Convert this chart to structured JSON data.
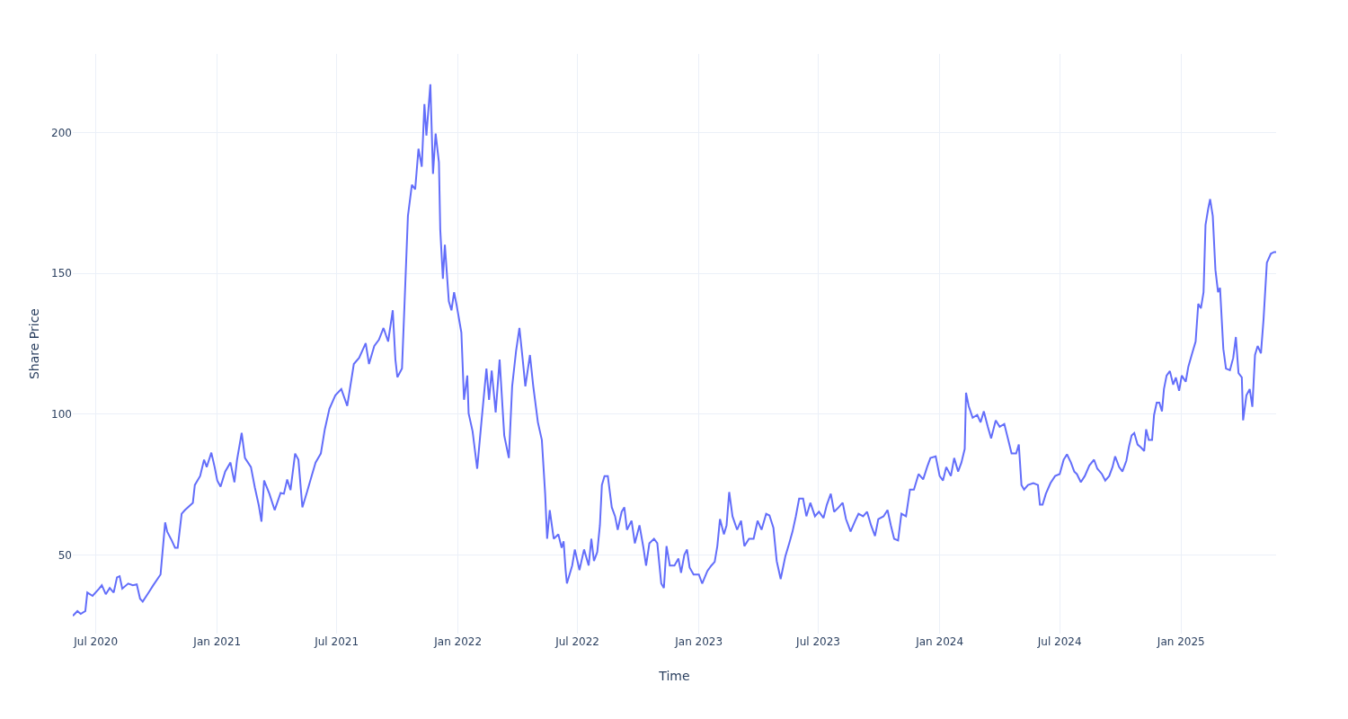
{
  "chart_data": {
    "type": "line",
    "xlabel": "Time",
    "ylabel": "Share Price",
    "grid": true,
    "xlim": [
      "2020-05-27",
      "2025-05-25"
    ],
    "xticks": [
      {
        "value": "2020-07-01",
        "label": "Jul 2020"
      },
      {
        "value": "2021-01-01",
        "label": "Jan 2021"
      },
      {
        "value": "2021-07-01",
        "label": "Jul 2021"
      },
      {
        "value": "2022-01-01",
        "label": "Jan 2022"
      },
      {
        "value": "2022-07-01",
        "label": "Jul 2022"
      },
      {
        "value": "2023-01-01",
        "label": "Jan 2023"
      },
      {
        "value": "2023-07-01",
        "label": "Jul 2023"
      },
      {
        "value": "2024-01-01",
        "label": "Jan 2024"
      },
      {
        "value": "2024-07-01",
        "label": "Jul 2024"
      },
      {
        "value": "2025-01-01",
        "label": "Jan 2025"
      }
    ],
    "ylim": [
      22,
      228
    ],
    "yticks": [
      50,
      100,
      150,
      200
    ],
    "series": [
      {
        "color": "#636efa",
        "x": [
          "2020-05-27",
          "2020-06-03",
          "2020-06-08",
          "2020-06-15",
          "2020-06-18",
          "2020-06-26",
          "2020-07-06",
          "2020-07-10",
          "2020-07-16",
          "2020-07-22",
          "2020-07-28",
          "2020-08-02",
          "2020-08-06",
          "2020-08-10",
          "2020-08-19",
          "2020-08-26",
          "2020-09-01",
          "2020-09-06",
          "2020-09-10",
          "2020-09-19",
          "2020-09-26",
          "2020-10-07",
          "2020-10-14",
          "2020-10-17",
          "2020-10-24",
          "2020-10-29",
          "2020-11-02",
          "2020-11-08",
          "2020-11-13",
          "2020-11-25",
          "2020-11-28",
          "2020-12-06",
          "2020-12-12",
          "2020-12-16",
          "2020-12-23",
          "2020-12-28",
          "2021-01-01",
          "2021-01-06",
          "2021-01-13",
          "2021-01-21",
          "2021-01-27",
          "2021-01-31",
          "2021-02-07",
          "2021-02-12",
          "2021-02-21",
          "2021-02-27",
          "2021-03-05",
          "2021-03-09",
          "2021-03-13",
          "2021-03-21",
          "2021-03-29",
          "2021-04-07",
          "2021-04-12",
          "2021-04-17",
          "2021-04-22",
          "2021-04-29",
          "2021-05-04",
          "2021-05-10",
          "2021-05-17",
          "2021-05-24",
          "2021-05-30",
          "2021-06-07",
          "2021-06-13",
          "2021-06-20",
          "2021-06-29",
          "2021-07-08",
          "2021-07-17",
          "2021-07-27",
          "2021-08-04",
          "2021-08-14",
          "2021-08-19",
          "2021-08-27",
          "2021-09-03",
          "2021-09-10",
          "2021-09-17",
          "2021-09-24",
          "2021-09-28",
          "2021-10-01",
          "2021-10-08",
          "2021-10-12",
          "2021-10-17",
          "2021-10-23",
          "2021-10-28",
          "2021-11-02",
          "2021-11-07",
          "2021-11-11",
          "2021-11-14",
          "2021-11-20",
          "2021-11-24",
          "2021-11-28",
          "2021-12-03",
          "2021-12-05",
          "2021-12-09",
          "2021-12-12",
          "2021-12-18",
          "2021-12-22",
          "2021-12-26",
          "2021-12-30",
          "2022-01-06",
          "2022-01-10",
          "2022-01-15",
          "2022-01-17",
          "2022-01-23",
          "2022-01-30",
          "2022-02-06",
          "2022-02-13",
          "2022-02-17",
          "2022-02-21",
          "2022-02-27",
          "2022-03-05",
          "2022-03-12",
          "2022-03-19",
          "2022-03-24",
          "2022-03-30",
          "2022-04-04",
          "2022-04-09",
          "2022-04-13",
          "2022-04-20",
          "2022-04-25",
          "2022-05-02",
          "2022-05-08",
          "2022-05-13",
          "2022-05-16",
          "2022-05-20",
          "2022-05-26",
          "2022-06-02",
          "2022-06-07",
          "2022-06-10",
          "2022-06-13",
          "2022-06-15",
          "2022-06-23",
          "2022-06-27",
          "2022-07-04",
          "2022-07-11",
          "2022-07-18",
          "2022-07-22",
          "2022-07-26",
          "2022-07-31",
          "2022-08-04",
          "2022-08-07",
          "2022-08-11",
          "2022-08-16",
          "2022-08-22",
          "2022-08-27",
          "2022-08-31",
          "2022-09-06",
          "2022-09-10",
          "2022-09-14",
          "2022-09-21",
          "2022-09-26",
          "2022-10-03",
          "2022-10-09",
          "2022-10-13",
          "2022-10-18",
          "2022-10-25",
          "2022-10-30",
          "2022-11-05",
          "2022-11-09",
          "2022-11-13",
          "2022-11-18",
          "2022-11-25",
          "2022-12-01",
          "2022-12-05",
          "2022-12-10",
          "2022-12-14",
          "2022-12-18",
          "2022-12-24",
          "2023-01-01",
          "2023-01-06",
          "2023-01-14",
          "2023-01-20",
          "2023-01-25",
          "2023-01-29",
          "2023-02-02",
          "2023-02-08",
          "2023-02-12",
          "2023-02-16",
          "2023-02-21",
          "2023-02-28",
          "2023-03-06",
          "2023-03-11",
          "2023-03-18",
          "2023-03-25",
          "2023-03-31",
          "2023-04-06",
          "2023-04-13",
          "2023-04-18",
          "2023-04-24",
          "2023-04-29",
          "2023-05-05",
          "2023-05-12",
          "2023-05-18",
          "2023-05-23",
          "2023-05-28",
          "2023-06-02",
          "2023-06-08",
          "2023-06-13",
          "2023-06-19",
          "2023-06-26",
          "2023-07-02",
          "2023-07-09",
          "2023-07-14",
          "2023-07-20",
          "2023-07-25",
          "2023-08-01",
          "2023-08-07",
          "2023-08-12",
          "2023-08-19",
          "2023-08-26",
          "2023-08-31",
          "2023-09-07",
          "2023-09-13",
          "2023-09-19",
          "2023-09-25",
          "2023-09-30",
          "2023-10-08",
          "2023-10-14",
          "2023-10-19",
          "2023-10-24",
          "2023-10-30",
          "2023-11-04",
          "2023-11-11",
          "2023-11-17",
          "2023-11-23",
          "2023-11-30",
          "2023-12-07",
          "2023-12-13",
          "2023-12-18",
          "2023-12-26",
          "2024-01-01",
          "2024-01-06",
          "2024-01-11",
          "2024-01-18",
          "2024-01-23",
          "2024-01-29",
          "2024-02-03",
          "2024-02-08",
          "2024-02-10",
          "2024-02-14",
          "2024-02-20",
          "2024-02-27",
          "2024-03-03",
          "2024-03-08",
          "2024-03-14",
          "2024-03-19",
          "2024-03-26",
          "2024-04-01",
          "2024-04-08",
          "2024-04-14",
          "2024-04-19",
          "2024-04-26",
          "2024-04-30",
          "2024-05-04",
          "2024-05-08",
          "2024-05-14",
          "2024-05-22",
          "2024-05-29",
          "2024-06-01",
          "2024-06-05",
          "2024-06-10",
          "2024-06-17",
          "2024-06-24",
          "2024-07-01",
          "2024-07-07",
          "2024-07-12",
          "2024-07-18",
          "2024-07-23",
          "2024-07-27",
          "2024-08-02",
          "2024-08-08",
          "2024-08-15",
          "2024-08-22",
          "2024-08-27",
          "2024-09-03",
          "2024-09-08",
          "2024-09-14",
          "2024-09-19",
          "2024-09-23",
          "2024-09-29",
          "2024-10-04",
          "2024-10-10",
          "2024-10-14",
          "2024-10-18",
          "2024-10-22",
          "2024-10-27",
          "2024-11-01",
          "2024-11-06",
          "2024-11-09",
          "2024-11-13",
          "2024-11-18",
          "2024-11-21",
          "2024-11-25",
          "2024-11-29",
          "2024-12-03",
          "2024-12-06",
          "2024-12-10",
          "2024-12-15",
          "2024-12-20",
          "2024-12-24",
          "2024-12-29",
          "2025-01-02",
          "2025-01-08",
          "2025-01-12",
          "2025-01-17",
          "2025-01-23",
          "2025-01-27",
          "2025-01-31",
          "2025-02-04",
          "2025-02-07",
          "2025-02-11",
          "2025-02-14",
          "2025-02-18",
          "2025-02-22",
          "2025-02-26",
          "2025-03-01",
          "2025-03-06",
          "2025-03-10",
          "2025-03-16",
          "2025-03-21",
          "2025-03-25",
          "2025-03-29",
          "2025-04-03",
          "2025-04-05",
          "2025-04-10",
          "2025-04-15",
          "2025-04-19",
          "2025-04-23",
          "2025-04-27",
          "2025-05-02",
          "2025-05-06",
          "2025-05-11",
          "2025-05-17",
          "2025-05-22",
          "2025-05-25"
        ],
        "values": [
          28.3,
          30,
          29,
          30,
          36.6,
          35.4,
          38,
          39.2,
          36,
          38.2,
          36.6,
          42,
          42.4,
          38,
          39.8,
          39.2,
          39.5,
          34.4,
          33.4,
          36.6,
          39.2,
          43,
          61.5,
          58.3,
          55.1,
          52.5,
          52.5,
          64.6,
          65.9,
          68.5,
          74.8,
          78,
          83.8,
          81.2,
          86.3,
          81.2,
          76.4,
          74.2,
          79.6,
          82.8,
          75.8,
          83.8,
          93.3,
          84.4,
          81.2,
          73.9,
          67.5,
          61.8,
          76.4,
          71.7,
          65.9,
          72,
          71.7,
          76.8,
          73,
          86,
          83.8,
          66.9,
          72.3,
          78,
          82.8,
          86,
          94.6,
          101.9,
          106.7,
          108.9,
          102.9,
          117.8,
          120,
          125.2,
          117.8,
          124.2,
          126.4,
          130.6,
          125.8,
          136.9,
          119.4,
          113.1,
          116.2,
          140.1,
          170.4,
          181.5,
          179.9,
          194.3,
          187.9,
          210.2,
          199,
          217.2,
          185.4,
          199.7,
          189.5,
          165.6,
          148.1,
          160.2,
          140.1,
          136.9,
          143.3,
          138.5,
          129,
          105.1,
          113.7,
          100.3,
          93.9,
          80.6,
          98.7,
          116.2,
          105.1,
          115.5,
          100.6,
          119.4,
          92.4,
          84.4,
          109.9,
          122.6,
          130.6,
          119.4,
          109.9,
          121,
          109.9,
          97.1,
          90.8,
          71.7,
          55.7,
          65.9,
          55.7,
          57.3,
          52.5,
          54.8,
          44.6,
          39.8,
          46.2,
          51.9,
          44.6,
          51.9,
          46.2,
          55.7,
          47.8,
          51,
          60.5,
          74.8,
          78,
          78,
          66.9,
          63.7,
          58.9,
          65.3,
          66.9,
          58.9,
          62.1,
          54.1,
          60.5,
          52.5,
          46.2,
          54.1,
          55.7,
          54.1,
          39.8,
          38.2,
          53.1,
          46.2,
          46.2,
          48.7,
          43.6,
          50,
          51.9,
          45.5,
          43,
          43,
          39.8,
          44.3,
          46.2,
          47.5,
          53.1,
          62.7,
          57.3,
          60.5,
          72.3,
          63.7,
          58.9,
          62.1,
          53.1,
          55.7,
          55.7,
          62.1,
          58.9,
          64.6,
          64,
          59.6,
          47.8,
          41.4,
          49.4,
          54.1,
          58.3,
          63.7,
          70,
          70,
          63.7,
          68.5,
          63.7,
          65.3,
          63.1,
          67.8,
          71.7,
          65.3,
          66.9,
          68.5,
          62.7,
          58.3,
          62.1,
          64.6,
          63.7,
          65.3,
          60.5,
          56.7,
          62.7,
          63.7,
          65.9,
          60.5,
          55.7,
          55.1,
          64.6,
          63.7,
          73.2,
          73.2,
          78.7,
          76.8,
          81.2,
          84.4,
          85,
          78,
          76.4,
          81.2,
          78,
          84.4,
          79.6,
          82.8,
          87.6,
          107.6,
          102.9,
          98.7,
          99.7,
          97.1,
          101,
          95.5,
          91.4,
          97.8,
          95.5,
          96.5,
          90.8,
          86,
          86,
          89.2,
          74.8,
          73.2,
          74.8,
          75.5,
          74.8,
          67.8,
          67.8,
          71.7,
          75.5,
          78,
          78.7,
          83.8,
          85.7,
          82.8,
          79.6,
          78.7,
          75.8,
          78,
          81.8,
          83.8,
          80.6,
          78.7,
          76.4,
          78,
          81.2,
          85,
          81.2,
          79.6,
          83.4,
          88.5,
          92.4,
          93.3,
          89.2,
          88.2,
          86.9,
          94.6,
          90.8,
          90.8,
          99.7,
          104.1,
          104.1,
          101,
          108.9,
          113.7,
          115.3,
          110.5,
          113,
          108.3,
          113.7,
          111.5,
          116.9,
          121,
          125.8,
          139.2,
          137.6,
          143.3,
          167.2,
          172.9,
          176.4,
          170.4,
          151.3,
          143.3,
          144.9,
          123.2,
          116.2,
          115.6,
          120,
          127.4,
          114.6,
          113.1,
          97.8,
          106.7,
          108.9,
          102.6,
          121,
          124.2,
          121.6,
          133.8,
          153.8,
          157,
          157.6,
          157.6
        ]
      }
    ]
  }
}
